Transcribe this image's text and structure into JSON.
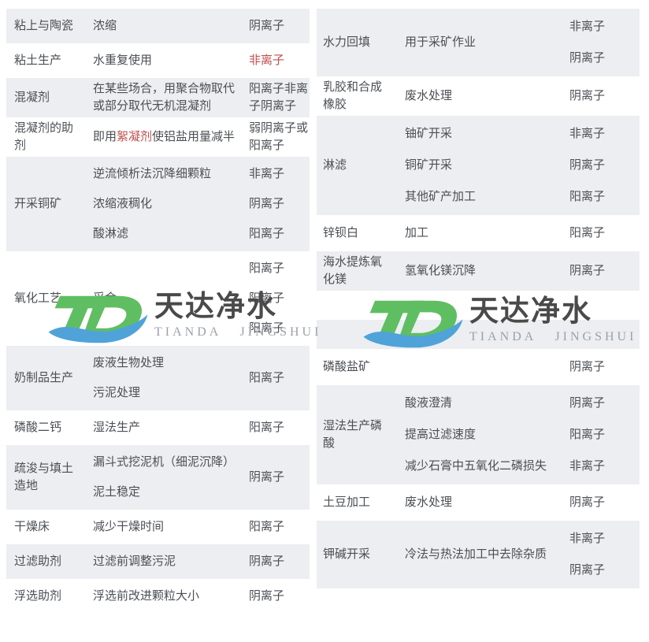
{
  "logo": {
    "name": "天达净水",
    "name_en": "TIANDA  JINGSHUI",
    "icon_letters": "TD",
    "green": "#5fbe62",
    "blue": "#4fa3d9",
    "text_color": "#4a4a4a",
    "en_color": "#9ba1a8"
  },
  "colors": {
    "row_shade": "#eceef1",
    "body_text": "#4b4f54",
    "highlight_red": "#c0504d"
  },
  "tables": {
    "left": {
      "rows": [
        {
          "label": "粘上与陶瓷",
          "shade": true,
          "descs": [
            [
              {
                "t": "浓缩"
              }
            ]
          ],
          "ions": [
            {
              "t": "阴离子"
            }
          ]
        },
        {
          "label": "粘土生产",
          "shade": false,
          "descs": [
            [
              {
                "t": "水重复使用"
              }
            ]
          ],
          "ions": [
            {
              "t": "非离子",
              "red": true
            }
          ]
        },
        {
          "label": "混凝剂",
          "shade": true,
          "descs": [
            [
              {
                "t": "在某些场合，用聚合物取代或部分取代无机混凝剂"
              }
            ]
          ],
          "ions": [
            {
              "t": "阳离子非离子阴离子"
            }
          ]
        },
        {
          "label": "混凝剂的助剂",
          "shade": false,
          "descs": [
            [
              {
                "t": "即用"
              },
              {
                "t": "絮凝剂",
                "red": true
              },
              {
                "t": "使铝盐用量减半"
              }
            ]
          ],
          "ions": [
            {
              "t": "弱阴离子或阳离子"
            }
          ]
        },
        {
          "label": "开采铜矿",
          "shade": true,
          "descs": [
            [
              {
                "t": "逆流倾析法沉降细颗粒"
              }
            ],
            [
              {
                "t": "浓缩液稠化"
              }
            ],
            [
              {
                "t": "酸淋滤"
              }
            ]
          ],
          "ions": [
            {
              "t": "非离子"
            },
            {
              "t": "阴离子"
            },
            {
              "t": "阳离子"
            }
          ]
        },
        {
          "label": "氧化工艺",
          "shade": false,
          "descs": [
            [
              {
                "t": "采金"
              }
            ]
          ],
          "ions": [
            {
              "t": "阳离子"
            },
            {
              "t": "阳离子"
            },
            {
              "t": "阳离子"
            }
          ]
        },
        {
          "label": "奶制品生产",
          "shade": true,
          "descs": [
            [
              {
                "t": "废液生物处理"
              }
            ],
            [
              {
                "t": "污泥处理"
              }
            ]
          ],
          "ions": [
            {
              "t": "阳离子"
            }
          ]
        },
        {
          "label": "磷酸二钙",
          "shade": false,
          "descs": [
            [
              {
                "t": "湿法生产"
              }
            ]
          ],
          "ions": [
            {
              "t": "阳离子"
            }
          ]
        },
        {
          "label": "疏浚与填土造地",
          "shade": true,
          "descs": [
            [
              {
                "t": "漏斗式挖泥机（细泥沉降）"
              }
            ],
            [
              {
                "t": "泥土稳定"
              }
            ]
          ],
          "ions": [
            {
              "t": "阴离子"
            }
          ]
        },
        {
          "label": "干燥床",
          "shade": false,
          "descs": [
            [
              {
                "t": "减少干燥时间"
              }
            ]
          ],
          "ions": [
            {
              "t": "阳离子"
            }
          ]
        },
        {
          "label": "过滤助剂",
          "shade": true,
          "descs": [
            [
              {
                "t": "过滤前调整污泥"
              }
            ]
          ],
          "ions": [
            {
              "t": "阴离子"
            }
          ]
        },
        {
          "label": "浮选助剂",
          "shade": false,
          "descs": [
            [
              {
                "t": "浮选前改进颗粒大小"
              }
            ]
          ],
          "ions": [
            {
              "t": "阴离子"
            }
          ]
        }
      ]
    },
    "right": {
      "rows": [
        {
          "label": "水力回填",
          "shade": true,
          "descs": [
            [
              {
                "t": "用于采矿作业"
              }
            ]
          ],
          "ions": [
            {
              "t": "非离子"
            },
            {
              "t": "阴离子"
            }
          ]
        },
        {
          "label": "乳胶和合成橡胶",
          "shade": false,
          "descs": [
            [
              {
                "t": "废水处理"
              }
            ]
          ],
          "ions": [
            {
              "t": "阴离子"
            }
          ]
        },
        {
          "label": "淋滤",
          "shade": true,
          "descs": [
            [
              {
                "t": "铀矿开采"
              }
            ],
            [
              {
                "t": "铜矿开采"
              }
            ],
            [
              {
                "t": "其他矿产加工"
              }
            ]
          ],
          "ions": [
            {
              "t": "非离子"
            },
            {
              "t": "阴离子"
            },
            {
              "t": "阳离子"
            }
          ]
        },
        {
          "label": "锌钡白",
          "shade": false,
          "descs": [
            [
              {
                "t": "加工"
              }
            ]
          ],
          "ions": [
            {
              "t": "阳离子"
            }
          ]
        },
        {
          "label": "海水提炼氧化镁",
          "shade": true,
          "descs": [
            [
              {
                "t": "氢氧化镁沉降"
              }
            ]
          ],
          "ions": [
            {
              "t": "阴离子"
            }
          ]
        },
        {
          "label": "",
          "shade": false,
          "empty": true,
          "descs": [],
          "ions": []
        },
        {
          "label": "",
          "shade": true,
          "empty": true,
          "descs": [],
          "ions": []
        },
        {
          "label": "磷酸盐矿",
          "shade": false,
          "descs": [],
          "ions": [
            {
              "t": "阴离子"
            }
          ]
        },
        {
          "label": "湿法生产磷酸",
          "shade": true,
          "descs": [
            [
              {
                "t": "酸液澄清"
              }
            ],
            [
              {
                "t": "提高过滤速度"
              }
            ],
            [
              {
                "t": "减少石膏中五氧化二磷损失"
              }
            ]
          ],
          "ions": [
            {
              "t": "阴离子"
            },
            {
              "t": "阳离子"
            },
            {
              "t": "非离子"
            }
          ]
        },
        {
          "label": "土豆加工",
          "shade": false,
          "descs": [
            [
              {
                "t": "废水处理"
              }
            ]
          ],
          "ions": [
            {
              "t": "阴离子"
            }
          ]
        },
        {
          "label": "钾碱开采",
          "shade": true,
          "descs": [
            [
              {
                "t": "冷法与热法加工中去除杂质"
              }
            ]
          ],
          "ions": [
            {
              "t": "非离子"
            },
            {
              "t": "阴离子"
            }
          ]
        }
      ]
    }
  }
}
